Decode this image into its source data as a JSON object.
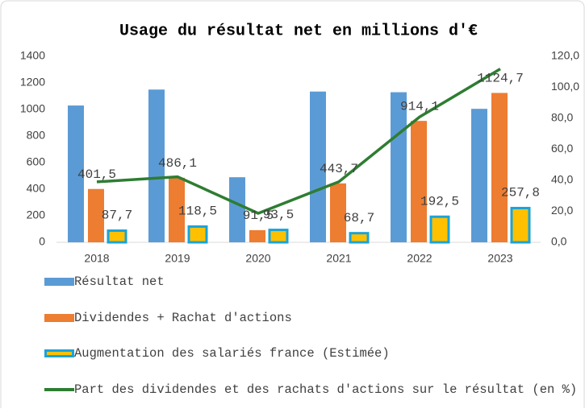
{
  "chart_data": {
    "type": "bar",
    "title": "Usage du résultat net en millions d'€",
    "categories": [
      "2018",
      "2019",
      "2020",
      "2021",
      "2022",
      "2023"
    ],
    "series": [
      {
        "name": "Résultat net",
        "color": "#5b9bd5",
        "values": [
          1030,
          1150,
          490,
          1135,
          1130,
          1005
        ]
      },
      {
        "name": "Dividendes + Rachat d'actions",
        "color": "#ed7d31",
        "values": [
          401.5,
          486.1,
          91.5,
          443.7,
          914.1,
          1124.7
        ],
        "value_labels": [
          "401,5",
          "486,1",
          "91,5",
          "443,7",
          "914,1",
          "1124,7"
        ]
      },
      {
        "name": "Augmentation des salariés france (Estimée)",
        "color": "#ffc000",
        "border_color": "#1aa3d9",
        "values": [
          87.7,
          118.5,
          93.5,
          68.7,
          192.5,
          257.8
        ],
        "value_labels": [
          "87,7",
          "118,5",
          "93,5",
          "68,7",
          "192,5",
          "257,8"
        ]
      },
      {
        "name": "Part des dividendes et des rachats d'actions sur le résultat (en %)",
        "color": "#2e7d32",
        "type": "line",
        "axis": "y2",
        "values": [
          39,
          42.3,
          18.7,
          39.1,
          80.9,
          111.9
        ]
      }
    ],
    "ylim": [
      0,
      1400
    ],
    "yticks": [
      0,
      200,
      400,
      600,
      800,
      1000,
      1200,
      1400
    ],
    "y2lim": [
      0,
      120
    ],
    "y2ticks": [
      {
        "value": 0,
        "label": "0,0"
      },
      {
        "value": 20,
        "label": "20,0"
      },
      {
        "value": 40,
        "label": "40,0"
      },
      {
        "value": 60,
        "label": "60,0"
      },
      {
        "value": 80,
        "label": "80,0"
      },
      {
        "value": 100,
        "label": "100,0"
      },
      {
        "value": 120,
        "label": "120,0"
      }
    ],
    "legend": "bottom"
  }
}
